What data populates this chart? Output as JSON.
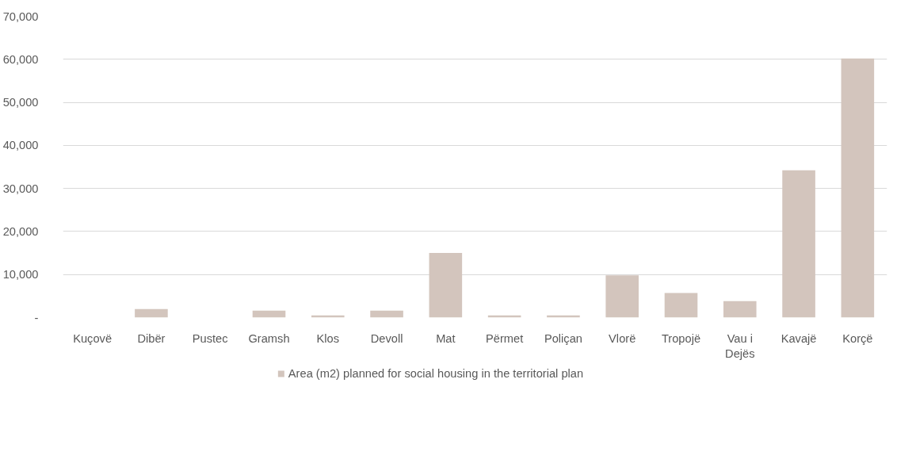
{
  "chart_data": {
    "type": "bar",
    "categories": [
      "Kuçovë",
      "Dibër",
      "Pustec",
      "Gramsh",
      "Klos",
      "Devoll",
      "Mat",
      "Përmet",
      "Poliçan",
      "Vlorë",
      "Tropojë",
      "Vau i Dejës",
      "Kavajë",
      "Korçë"
    ],
    "series": [
      {
        "name": "Area (m2) planned for social housing in the territorial plan",
        "color": "#d3c5bd",
        "values": [
          0,
          2000,
          0,
          1600,
          500,
          1600,
          15000,
          500,
          500,
          9800,
          5700,
          3800,
          34200,
          60200
        ]
      }
    ],
    "ylim": [
      0,
      70000
    ],
    "yticks": [
      {
        "value": 0,
        "label": "-"
      },
      {
        "value": 10000,
        "label": "10,000"
      },
      {
        "value": 20000,
        "label": "20,000"
      },
      {
        "value": 30000,
        "label": "30,000"
      },
      {
        "value": 40000,
        "label": "40,000"
      },
      {
        "value": 50000,
        "label": "50,000"
      },
      {
        "value": 60000,
        "label": "60,000"
      },
      {
        "value": 70000,
        "label": "70,000"
      }
    ],
    "grid": "y",
    "legend": "bottom"
  }
}
